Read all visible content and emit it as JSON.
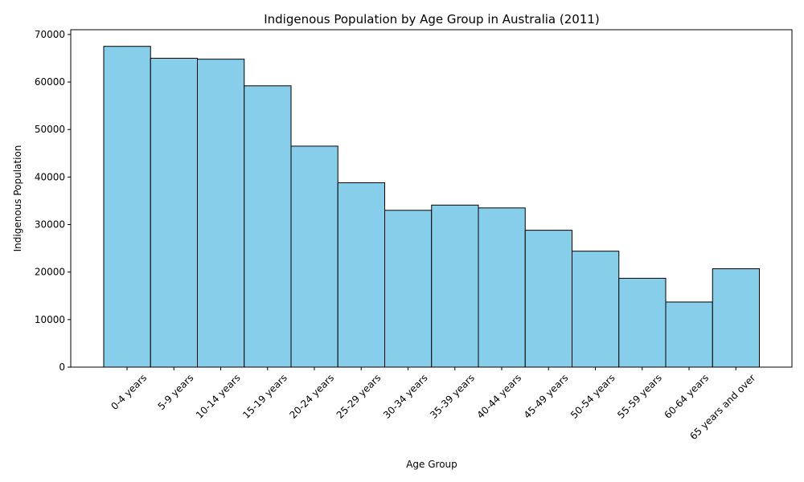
{
  "chart_data": {
    "type": "bar",
    "title": "Indigenous Population by Age Group in Australia (2011)",
    "xlabel": "Age Group",
    "ylabel": "Indigenous Population",
    "categories": [
      "0-4 years",
      "5-9 years",
      "10-14 years",
      "15-19 years",
      "20-24 years",
      "25-29 years",
      "30-34 years",
      "35-39 years",
      "40-44 years",
      "45-49 years",
      "50-54 years",
      "55-59 years",
      "60-64 years",
      "65 years and over"
    ],
    "values": [
      67500,
      65000,
      64800,
      59200,
      46500,
      38800,
      33000,
      34100,
      33500,
      28800,
      24400,
      18700,
      13700,
      20700
    ],
    "yticks": [
      0,
      10000,
      20000,
      30000,
      40000,
      50000,
      60000,
      70000
    ],
    "ylim": [
      0,
      71000
    ],
    "bar_color": "#87ceeb",
    "edge_color": "#000000",
    "grid": false
  }
}
